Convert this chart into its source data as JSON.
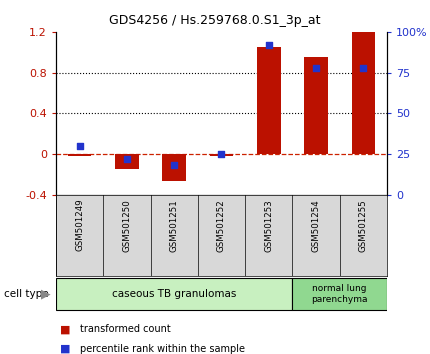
{
  "title": "GDS4256 / Hs.259768.0.S1_3p_at",
  "samples": [
    "GSM501249",
    "GSM501250",
    "GSM501251",
    "GSM501252",
    "GSM501253",
    "GSM501254",
    "GSM501255"
  ],
  "transformed_count": [
    -0.02,
    -0.15,
    -0.27,
    -0.02,
    1.05,
    0.95,
    1.2
  ],
  "percentile_rank": [
    30,
    22,
    18,
    25,
    92,
    78,
    78
  ],
  "left_ylim": [
    -0.4,
    1.2
  ],
  "right_ylim": [
    0,
    100
  ],
  "left_yticks": [
    -0.4,
    0.0,
    0.4,
    0.8,
    1.2
  ],
  "left_yticklabels": [
    "-0.4",
    "0",
    "0.4",
    "0.8",
    "1.2"
  ],
  "right_yticks": [
    0,
    25,
    50,
    75,
    100
  ],
  "right_yticklabels": [
    "0",
    "25",
    "50",
    "75",
    "100%"
  ],
  "hlines": [
    0.8,
    0.4
  ],
  "bar_color": "#bb1100",
  "dot_color": "#2233cc",
  "dashed_color": "#cc2200",
  "group1_label": "caseous TB granulomas",
  "group2_label": "normal lung\nparenchyma",
  "group1_indices": [
    0,
    1,
    2,
    3,
    4
  ],
  "group2_indices": [
    5,
    6
  ],
  "group1_color": "#c8f0c0",
  "group2_color": "#90d890",
  "cell_type_label": "cell type",
  "legend1": "transformed count",
  "legend2": "percentile rank within the sample",
  "sample_bg": "#d8d8d8",
  "bar_width": 0.5
}
